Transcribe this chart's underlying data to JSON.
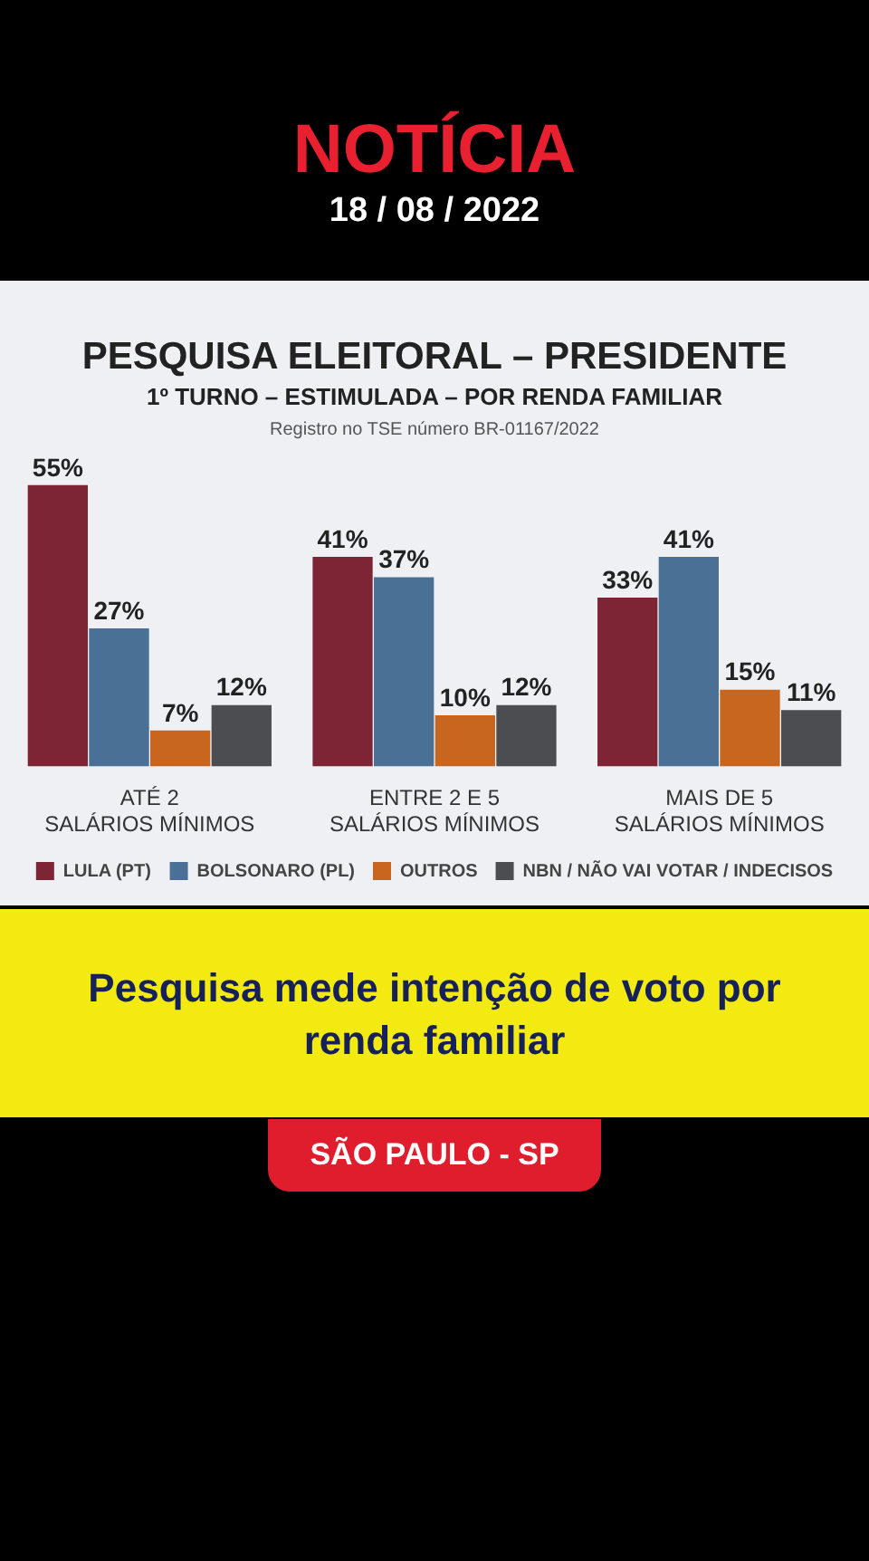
{
  "chart_data": {
    "type": "bar",
    "title": "PESQUISA ELEITORAL – PRESIDENTE",
    "subtitle": "1º TURNO – ESTIMULADA – POR RENDA FAMILIAR",
    "categories": [
      "ATÉ 2\nSALÁRIOS MÍNIMOS",
      "ENTRE 2 E 5\nSALÁRIOS MÍNIMOS",
      "MAIS DE 5\nSALÁRIOS MÍNIMOS"
    ],
    "series": [
      {
        "name": "LULA (PT)",
        "color": "#7d2535",
        "values": [
          55,
          41,
          33
        ],
        "value_labels": [
          "55%",
          "41%",
          "33%"
        ]
      },
      {
        "name": "BOLSONARO (PL)",
        "color": "#4a7096",
        "values": [
          27,
          37,
          41
        ],
        "value_labels": [
          "27%",
          "37%",
          "41%"
        ]
      },
      {
        "name": "OUTROS",
        "color": "#c8661f",
        "values": [
          7,
          10,
          15
        ],
        "value_labels": [
          "7%",
          "10%",
          "15%"
        ]
      },
      {
        "name": "NBN / NÃO VAI VOTAR / INDECISOS",
        "color": "#4b4d50",
        "values": [
          12,
          12,
          11
        ],
        "value_labels": [
          "12%",
          "12%",
          "11%"
        ]
      }
    ],
    "legend": "bottom",
    "annotations": [
      "Registro no TSE número BR-01167/2022",
      "NOTÍCIA",
      "18 / 08 / 2022",
      "Pesquisa mede intenção de voto por renda familiar",
      "SÃO PAULO - SP"
    ]
  }
}
